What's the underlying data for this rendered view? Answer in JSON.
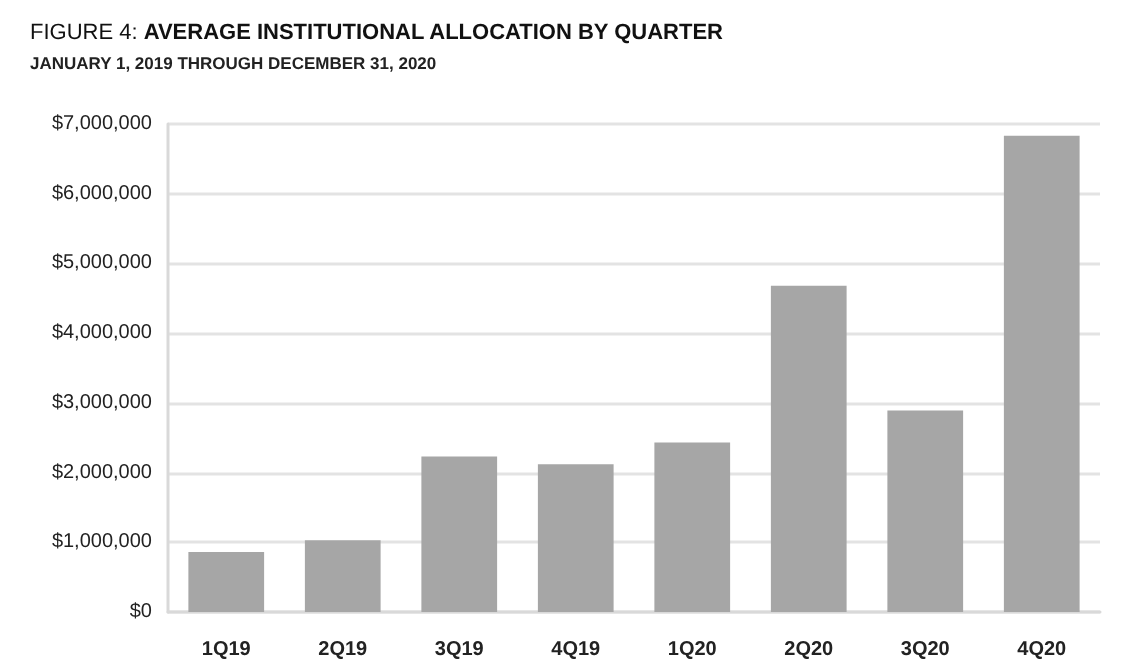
{
  "chart_data": {
    "type": "bar",
    "title": "FIGURE 4: AVERAGE INSTITUTIONAL ALLOCATION BY QUARTER",
    "subtitle": "JANUARY 1, 2019 THROUGH DECEMBER 31, 2020",
    "categories": [
      "1Q19",
      "2Q19",
      "3Q19",
      "4Q19",
      "1Q20",
      "2Q20",
      "3Q20",
      "4Q20"
    ],
    "values": [
      860000,
      1030000,
      2230000,
      2120000,
      2430000,
      4680000,
      2890000,
      6830000
    ],
    "color": "#a6a6a6",
    "ylim": [
      0,
      7000000
    ],
    "yticks": [
      {
        "value": 0,
        "label": "$0"
      },
      {
        "value": 1000000,
        "label": "$1,000,000"
      },
      {
        "value": 2000000,
        "label": "$2,000,000"
      },
      {
        "value": 3000000,
        "label": "$3,000,000"
      },
      {
        "value": 4000000,
        "label": "$4,000,000"
      },
      {
        "value": 5000000,
        "label": "$5,000,000"
      },
      {
        "value": 6000000,
        "label": "$6,000,000"
      },
      {
        "value": 7000000,
        "label": "$7,000,000"
      }
    ],
    "grid": "y"
  }
}
